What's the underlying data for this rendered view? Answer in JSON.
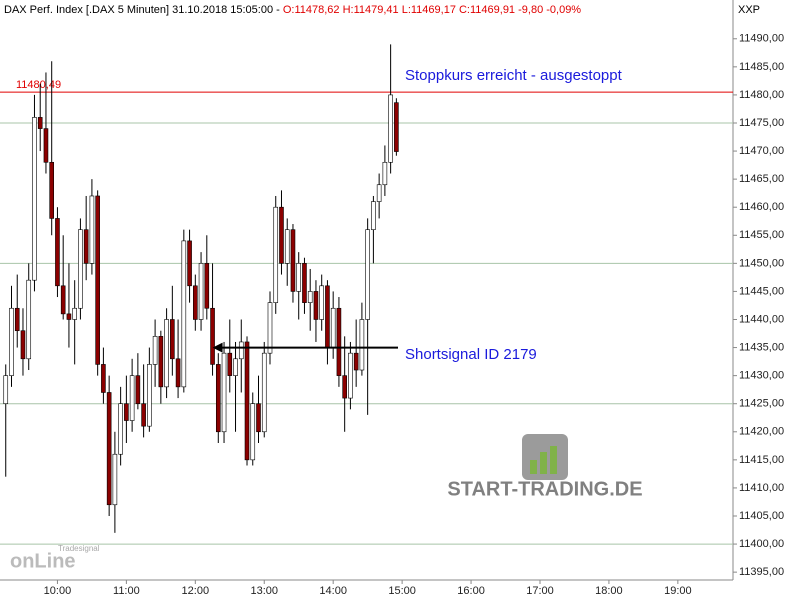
{
  "chart_data": {
    "type": "candlestick",
    "title": "DAX Perf. Index [.DAX  5 Minuten] 31.10.2018 15:05:00 -",
    "subtitle": "O:11478,62 H:11479,41 L:11469,17 C:11469,91 -9,80 -0,09%",
    "axis_label": "XXP",
    "x": [
      555,
      560,
      565,
      570,
      575,
      580,
      585,
      590,
      595,
      600,
      605,
      610,
      615,
      620,
      625,
      630,
      635,
      640,
      645,
      650,
      655,
      660,
      665,
      670,
      675,
      680,
      685,
      690,
      695,
      700,
      705,
      710,
      715,
      720,
      725,
      730,
      735,
      740,
      745,
      750,
      755,
      760,
      765,
      770,
      775,
      780,
      785,
      790,
      795,
      800,
      805,
      810,
      815,
      820,
      825,
      830,
      835,
      840,
      845,
      850,
      855,
      860,
      865,
      870,
      875,
      880,
      885,
      890,
      895
    ],
    "open": [
      11425,
      11430,
      11442,
      11438,
      11433,
      11447,
      11476,
      11474,
      11468,
      11458,
      11446,
      11441,
      11440,
      11442,
      11456,
      11450,
      11462,
      11432,
      11427,
      11407,
      11416,
      11425,
      11422,
      11430,
      11425,
      11421,
      11432,
      11437,
      11428,
      11440,
      11433,
      11428,
      11454,
      11446,
      11440,
      11450,
      11442,
      11432,
      11420,
      11434,
      11430,
      11433,
      11436,
      11415,
      11425,
      11420,
      11434,
      11443,
      11460,
      11450,
      11456,
      11445,
      11450,
      11443,
      11445,
      11440,
      11446,
      11435,
      11442,
      11430,
      11426,
      11434,
      11431,
      11440,
      11456,
      11461,
      11464,
      11468,
      11478.62
    ],
    "high": [
      11432,
      11446,
      11448,
      11442,
      11450,
      11480,
      11482,
      11484,
      11486,
      11460,
      11455,
      11450,
      11447,
      11458,
      11462,
      11465,
      11463,
      11435,
      11430,
      11420,
      11428,
      11430,
      11433,
      11434,
      11432,
      11435,
      11440,
      11438,
      11442,
      11446,
      11440,
      11456,
      11456,
      11448,
      11452,
      11455,
      11450,
      11434,
      11436,
      11440,
      11436,
      11440,
      11437,
      11427,
      11430,
      11436,
      11445,
      11462,
      11463,
      11458,
      11457,
      11452,
      11451,
      11449,
      11447,
      11448,
      11447,
      11445,
      11444,
      11437,
      11436,
      11440,
      11443,
      11458,
      11462,
      11466,
      11471,
      11489,
      11479.41
    ],
    "low": [
      11412,
      11428,
      11435,
      11430,
      11431,
      11445,
      11470,
      11466,
      11455,
      11444,
      11440,
      11435,
      11432,
      11440,
      11447,
      11448,
      11430,
      11425,
      11405,
      11402,
      11414,
      11418,
      11420,
      11424,
      11419,
      11420,
      11428,
      11425,
      11426,
      11430,
      11426,
      11427,
      11443,
      11438,
      11438,
      11440,
      11430,
      11418,
      11418,
      11427,
      11420,
      11427,
      11414,
      11414,
      11418,
      11419,
      11432,
      11441,
      11448,
      11446,
      11443,
      11440,
      11441,
      11438,
      11436,
      11438,
      11432,
      11433,
      11428,
      11420,
      11424,
      11428,
      11430,
      11423,
      11450,
      11458,
      11462,
      11466,
      11469.17
    ],
    "close": [
      11430,
      11442,
      11438,
      11433,
      11447,
      11476,
      11474,
      11468,
      11458,
      11446,
      11441,
      11440,
      11442,
      11456,
      11450,
      11462,
      11432,
      11427,
      11407,
      11416,
      11425,
      11422,
      11430,
      11425,
      11421,
      11432,
      11437,
      11428,
      11440,
      11433,
      11428,
      11454,
      11446,
      11440,
      11450,
      11442,
      11432,
      11420,
      11434,
      11430,
      11433,
      11436,
      11415,
      11425,
      11420,
      11434,
      11443,
      11460,
      11450,
      11456,
      11445,
      11450,
      11443,
      11445,
      11440,
      11446,
      11435,
      11442,
      11430,
      11426,
      11434,
      11431,
      11440,
      11456,
      11461,
      11464,
      11468,
      11480,
      11469.91
    ],
    "up_color": "#ffffff",
    "down_color": "#8b0000",
    "xlim": [
      550,
      1188
    ],
    "xticks": [
      {
        "value": 600,
        "label": "10:00"
      },
      {
        "value": 660,
        "label": "11:00"
      },
      {
        "value": 720,
        "label": "12:00"
      },
      {
        "value": 780,
        "label": "13:00"
      },
      {
        "value": 840,
        "label": "14:00"
      },
      {
        "value": 900,
        "label": "15:00"
      },
      {
        "value": 960,
        "label": "16:00"
      },
      {
        "value": 1020,
        "label": "17:00"
      },
      {
        "value": 1080,
        "label": "18:00"
      },
      {
        "value": 1140,
        "label": "19:00"
      }
    ],
    "ylim": [
      11393.6,
      11493.7
    ],
    "yticks": [
      {
        "value": 11395,
        "label": "11395,00"
      },
      {
        "value": 11400,
        "label": "11400,00"
      },
      {
        "value": 11405,
        "label": "11405,00"
      },
      {
        "value": 11410,
        "label": "11410,00"
      },
      {
        "value": 11415,
        "label": "11415,00"
      },
      {
        "value": 11420,
        "label": "11420,00"
      },
      {
        "value": 11425,
        "label": "11425,00"
      },
      {
        "value": 11430,
        "label": "11430,00"
      },
      {
        "value": 11435,
        "label": "11435,00"
      },
      {
        "value": 11440,
        "label": "11440,00"
      },
      {
        "value": 11445,
        "label": "11445,00"
      },
      {
        "value": 11450,
        "label": "11450,00"
      },
      {
        "value": 11455,
        "label": "11455,00"
      },
      {
        "value": 11460,
        "label": "11460,00"
      },
      {
        "value": 11465,
        "label": "11465,00"
      },
      {
        "value": 11470,
        "label": "11470,00"
      },
      {
        "value": 11475,
        "label": "11475,00"
      },
      {
        "value": 11480,
        "label": "11480,00"
      },
      {
        "value": 11485,
        "label": "11485,00"
      },
      {
        "value": 11490,
        "label": "11490,00"
      }
    ],
    "gridlines": [
      11400,
      11425,
      11450,
      11475
    ],
    "stop_line": {
      "value": 11480.49,
      "label": "11480,49",
      "color": "#e00000"
    },
    "annotations": [
      {
        "text": "Stoppkurs erreicht - ausgestoppt",
        "color": "#1a1adc"
      },
      {
        "text": "Shortsignal ID 2179",
        "color": "#1a1adc",
        "x": 735,
        "y": 11435
      }
    ],
    "watermarks": {
      "site": "START-TRADING.DE",
      "brand": "Tradesignal",
      "brand_logo": "onLine"
    }
  }
}
